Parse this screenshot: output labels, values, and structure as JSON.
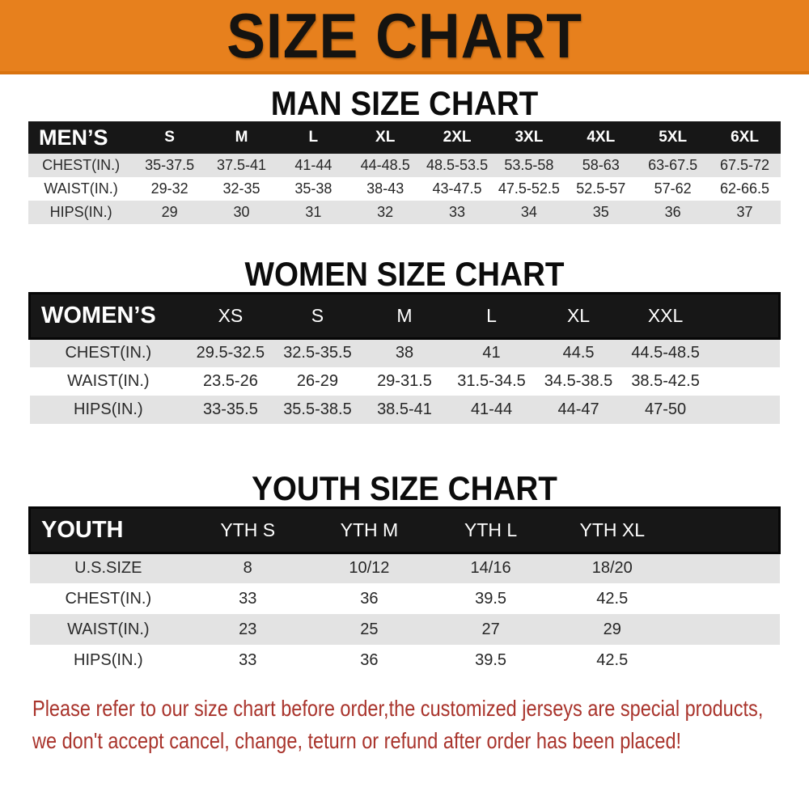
{
  "banner": {
    "title": "SIZE CHART",
    "bg_color": "#e7801d",
    "text_color": "#151310"
  },
  "colors": {
    "table_header_bg": "#171717",
    "row_stripe": "#e3e3e3",
    "notice_red": "#a9342c"
  },
  "sections": {
    "men": {
      "title": "MAN SIZE CHART",
      "table": {
        "header": [
          "MEN’S",
          "S",
          "M",
          "L",
          "XL",
          "2XL",
          "3XL",
          "4XL",
          "5XL",
          "6XL"
        ],
        "rows": [
          {
            "label": "CHEST(IN.)",
            "values": [
              "35-37.5",
              "37.5-41",
              "41-44",
              "44-48.5",
              "48.5-53.5",
              "53.5-58",
              "58-63",
              "63-67.5",
              "67.5-72"
            ]
          },
          {
            "label": "WAIST(IN.)",
            "values": [
              "29-32",
              "32-35",
              "35-38",
              "38-43",
              "43-47.5",
              "47.5-52.5",
              "52.5-57",
              "57-62",
              "62-66.5"
            ]
          },
          {
            "label": "HIPS(IN.)",
            "values": [
              "29",
              "30",
              "31",
              "32",
              "33",
              "34",
              "35",
              "36",
              "37"
            ]
          }
        ]
      }
    },
    "women": {
      "title": "WOMEN SIZE CHART",
      "table": {
        "header": [
          "WOMEN’S",
          "XS",
          "S",
          "M",
          "L",
          "XL",
          "XXL"
        ],
        "rows": [
          {
            "label": "CHEST(IN.)",
            "values": [
              "29.5-32.5",
              "32.5-35.5",
              "38",
              "41",
              "44.5",
              "44.5-48.5"
            ]
          },
          {
            "label": "WAIST(IN.)",
            "values": [
              "23.5-26",
              "26-29",
              "29-31.5",
              "31.5-34.5",
              "34.5-38.5",
              "38.5-42.5"
            ]
          },
          {
            "label": "HIPS(IN.)",
            "values": [
              "33-35.5",
              "35.5-38.5",
              "38.5-41",
              "41-44",
              "44-47",
              "47-50"
            ]
          }
        ]
      }
    },
    "youth": {
      "title": "YOUTH SIZE CHART",
      "table": {
        "header": [
          "YOUTH",
          "YTH S",
          "YTH M",
          "YTH L",
          "YTH XL"
        ],
        "rows": [
          {
            "label": "U.S.SIZE",
            "values": [
              "8",
              "10/12",
              "14/16",
              "18/20"
            ]
          },
          {
            "label": "CHEST(IN.)",
            "values": [
              "33",
              "36",
              "39.5",
              "42.5"
            ]
          },
          {
            "label": "WAIST(IN.)",
            "values": [
              "23",
              "25",
              "27",
              "29"
            ]
          },
          {
            "label": "HIPS(IN.)",
            "values": [
              "33",
              "36",
              "39.5",
              "42.5"
            ]
          }
        ]
      }
    }
  },
  "footer": {
    "line1": "Please refer to our size chart before order,the customized jerseys are special products,",
    "line2": "we don't accept cancel, change, teturn or refund after order has been placed!"
  }
}
